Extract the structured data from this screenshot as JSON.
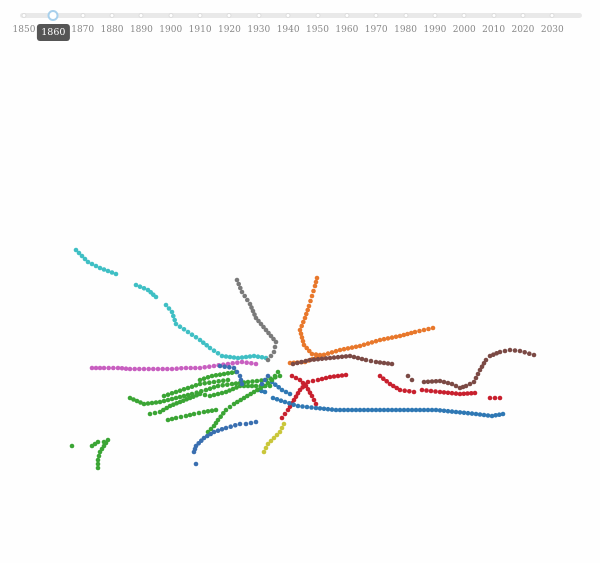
{
  "timeline": {
    "years": [
      "1850",
      "1860",
      "1870",
      "1880",
      "1890",
      "1900",
      "1910",
      "1920",
      "1930",
      "1940",
      "1950",
      "1960",
      "1970",
      "1980",
      "1990",
      "2000",
      "2010",
      "2020",
      "2030"
    ],
    "selected_year": "1860",
    "handle_color": "#a8d0ec",
    "track_color": "#e9e9e9"
  },
  "lines": [
    {
      "color": "#3fbfc4",
      "name": "cyan-line"
    },
    {
      "color": "#e8782c",
      "name": "orange-line"
    },
    {
      "color": "#7a7a7a",
      "name": "gray-line"
    },
    {
      "color": "#7b4a45",
      "name": "brown-line"
    },
    {
      "color": "#c8202e",
      "name": "red-line"
    },
    {
      "color": "#2f78b4",
      "name": "blue-line"
    },
    {
      "color": "#3ba535",
      "name": "green-line"
    },
    {
      "color": "#c85fc0",
      "name": "pink-line"
    },
    {
      "color": "#3a6fb0",
      "name": "dark-blue-line"
    },
    {
      "color": "#c9c63a",
      "name": "yellow-line"
    }
  ]
}
